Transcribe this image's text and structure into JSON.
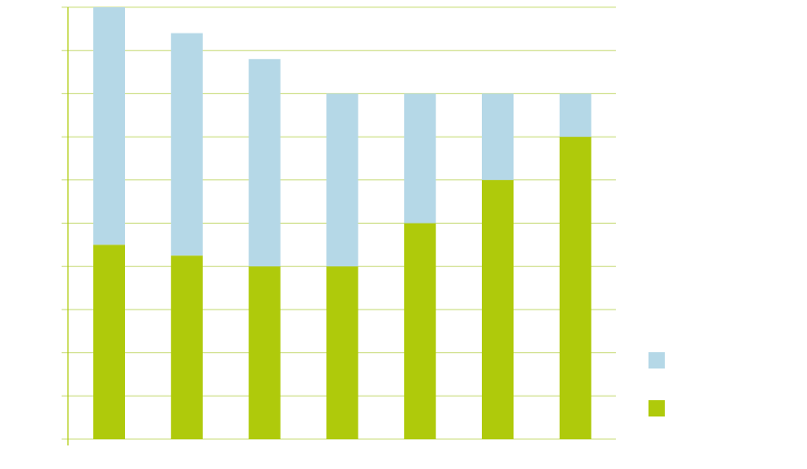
{
  "chart_data": {
    "type": "bar",
    "stacked": true,
    "categories": [
      "",
      "",
      "",
      "",
      "",
      "",
      ""
    ],
    "series": [
      {
        "values": [
          4.5,
          4.25,
          4.0,
          4.0,
          5.0,
          6.0,
          7.0
        ],
        "color": "#afca0b"
      },
      {
        "values": [
          5.5,
          5.15,
          4.8,
          4.0,
          3.0,
          2.0,
          1.0
        ],
        "color": "#b5d8e7"
      }
    ],
    "ylim": [
      0,
      10
    ],
    "grid": true,
    "grid_color": "#c8dc7a",
    "axis_color": "#afca0b",
    "legend_position": "right"
  }
}
